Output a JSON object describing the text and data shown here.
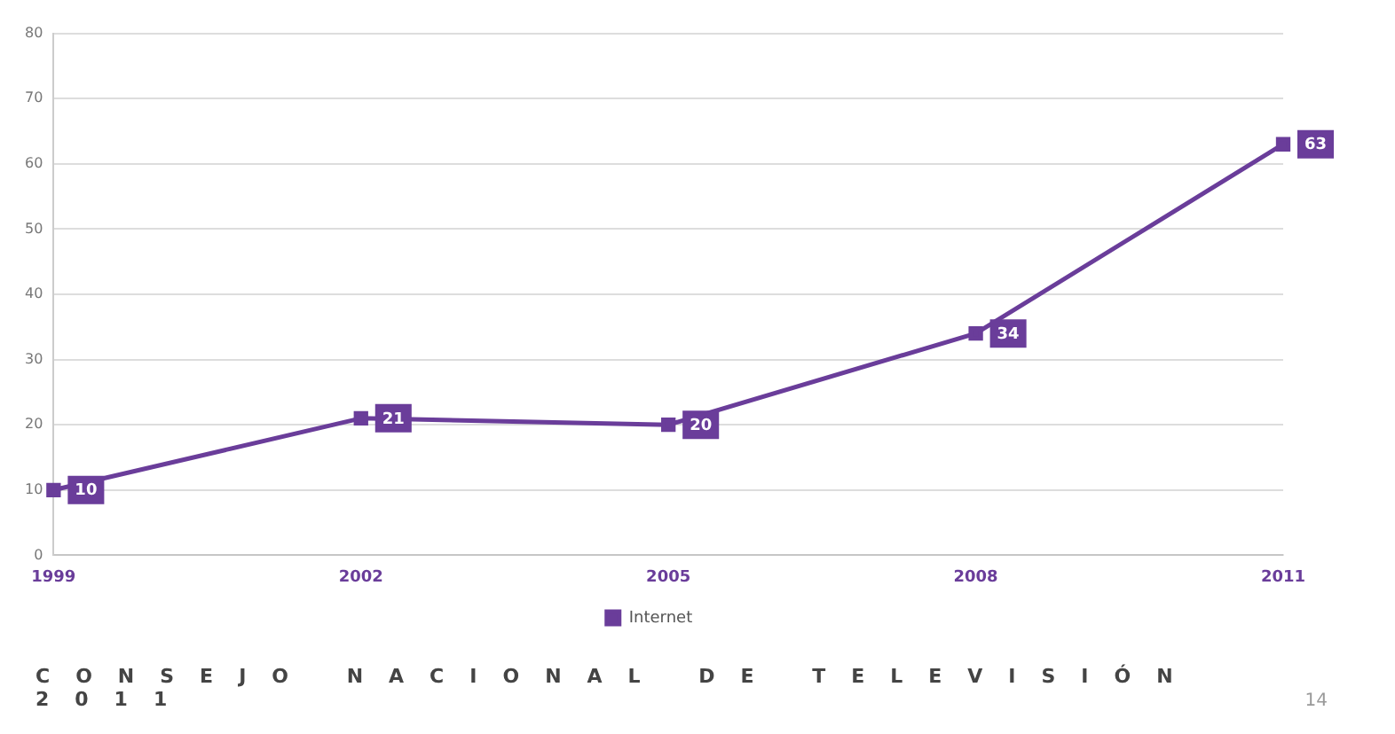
{
  "chart_data": {
    "type": "line",
    "categories": [
      "1999",
      "2002",
      "2005",
      "2008",
      "2011"
    ],
    "series": [
      {
        "name": "Internet",
        "color": "#6a3d9a",
        "values": [
          10,
          21,
          20,
          34,
          63
        ]
      }
    ],
    "ylim": [
      0,
      80
    ],
    "yticks": [
      0,
      10,
      20,
      30,
      40,
      50,
      60,
      70,
      80
    ],
    "grid": "y",
    "legend": "bottom",
    "marker": "square",
    "line_style": "solid",
    "data_labels": true,
    "annotations": [
      "CONSEJO NACIONAL DE TELEVISIÓN 2011",
      "14"
    ]
  }
}
